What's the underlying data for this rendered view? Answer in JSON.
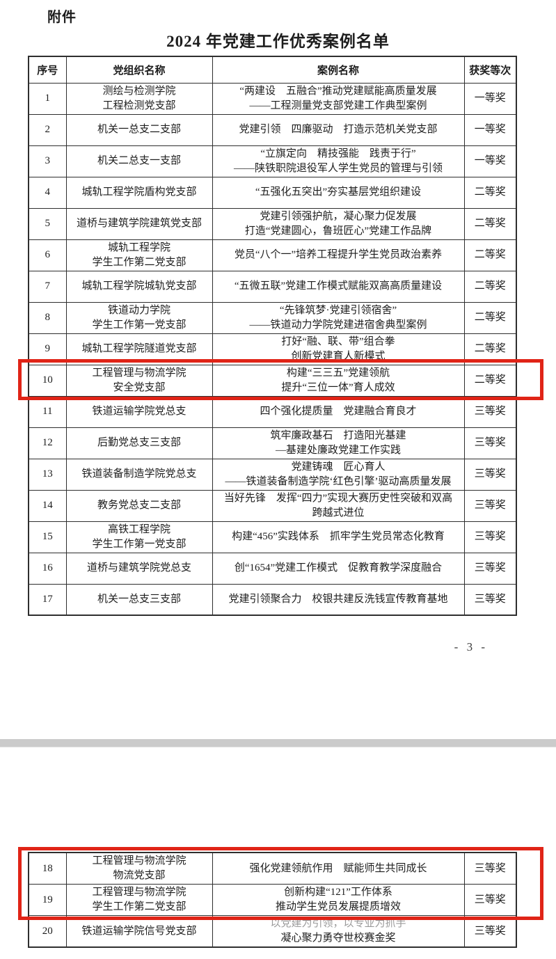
{
  "document": {
    "attachment_label": "附件",
    "title": "2024 年党建工作优秀案例名单",
    "page_number": "- 3 -",
    "highlight_color": "#e02417",
    "columns": [
      "序号",
      "党组织名称",
      "案例名称",
      "获奖等次"
    ],
    "rows": [
      {
        "no": "1",
        "page": 1,
        "org": [
          "测绘与检测学院",
          "工程检测党支部"
        ],
        "case": [
          "“两建设　五融合”推动党建赋能高质量发展",
          "——工程测量党支部党建工作典型案例"
        ],
        "award": "一等奖"
      },
      {
        "no": "2",
        "page": 1,
        "org": [
          "机关一总支二支部"
        ],
        "case": [
          "党建引领　四廉驱动　打造示范机关党支部"
        ],
        "award": "一等奖"
      },
      {
        "no": "3",
        "page": 1,
        "org": [
          "机关二总支一支部"
        ],
        "case": [
          "“立旗定向　精技强能　践责于行”",
          "——陕铁职院退役军人学生党员的管理与引领"
        ],
        "award": "一等奖"
      },
      {
        "no": "4",
        "page": 1,
        "org": [
          "城轨工程学院盾构党支部"
        ],
        "case": [
          "“五强化五突出”夯实基层党组织建设"
        ],
        "award": "二等奖"
      },
      {
        "no": "5",
        "page": 1,
        "org": [
          "道桥与建筑学院建筑党支部"
        ],
        "case": [
          "党建引领强护航，凝心聚力促发展",
          "打造“党建圆心，鲁班匠心”党建工作品牌"
        ],
        "award": "二等奖"
      },
      {
        "no": "6",
        "page": 1,
        "org": [
          "城轨工程学院",
          "学生工作第二党支部"
        ],
        "case": [
          "党员“八个一”培养工程提升学生党员政治素养"
        ],
        "award": "二等奖"
      },
      {
        "no": "7",
        "page": 1,
        "org": [
          "城轨工程学院城轨党支部"
        ],
        "case": [
          "“五微五联”党建工作模式赋能双高高质量建设"
        ],
        "award": "二等奖"
      },
      {
        "no": "8",
        "page": 1,
        "org": [
          "铁道动力学院",
          "学生工作第一党支部"
        ],
        "case": [
          "“先锋筑梦·党建引领宿舍”",
          "——铁道动力学院党建进宿舍典型案例"
        ],
        "award": "二等奖"
      },
      {
        "no": "9",
        "page": 1,
        "org": [
          "城轨工程学院隧道党支部"
        ],
        "case": [
          "打好“融、联、带”组合拳",
          "创新党建育人新模式"
        ],
        "award": "二等奖"
      },
      {
        "no": "10",
        "page": 1,
        "highlighted": true,
        "org": [
          "工程管理与物流学院",
          "安全党支部"
        ],
        "case": [
          "构建“三三五”党建领航",
          "提升“三位一体”育人成效"
        ],
        "award": "二等奖"
      },
      {
        "no": "11",
        "page": 1,
        "org": [
          "铁道运输学院党总支"
        ],
        "case": [
          "四个强化提质量　党建融合育良才"
        ],
        "award": "三等奖"
      },
      {
        "no": "12",
        "page": 1,
        "org": [
          "后勤党总支三支部"
        ],
        "case": [
          "筑牢廉政基石　打造阳光基建",
          "—基建处廉政党建工作实践"
        ],
        "award": "三等奖"
      },
      {
        "no": "13",
        "page": 1,
        "org": [
          "铁道装备制造学院党总支"
        ],
        "case": [
          "党建铸魂　匠心育人",
          "——铁道装备制造学院‘红色引擎’驱动高质量发展"
        ],
        "award": "三等奖"
      },
      {
        "no": "14",
        "page": 1,
        "org": [
          "教务党总支二支部"
        ],
        "case": [
          "当好先锋　发挥“四力”实现大赛历史性突破和双高",
          "跨越式进位"
        ],
        "award": "三等奖"
      },
      {
        "no": "15",
        "page": 1,
        "org": [
          "高铁工程学院",
          "学生工作第一党支部"
        ],
        "case": [
          "构建“456”实践体系　抓牢学生党员常态化教育"
        ],
        "award": "三等奖"
      },
      {
        "no": "16",
        "page": 1,
        "org": [
          "道桥与建筑学院党总支"
        ],
        "case": [
          "创“1654”党建工作模式　促教育教学深度融合"
        ],
        "award": "三等奖"
      },
      {
        "no": "17",
        "page": 1,
        "org": [
          "机关一总支三支部"
        ],
        "case": [
          "党建引领聚合力　校银共建反洗钱宣传教育基地"
        ],
        "award": "三等奖"
      },
      {
        "no": "18",
        "page": 2,
        "highlighted": true,
        "org": [
          "工程管理与物流学院",
          "物流党支部"
        ],
        "case": [
          "强化党建领航作用　赋能师生共同成长"
        ],
        "award": "三等奖"
      },
      {
        "no": "19",
        "page": 2,
        "highlighted": true,
        "org": [
          "工程管理与物流学院",
          "学生工作第二党支部"
        ],
        "case": [
          "创新构建“121”工作体系",
          "推动学生党员发展提质增效"
        ],
        "award": "三等奖"
      },
      {
        "no": "20",
        "page": 2,
        "faded_case_lines": [
          0
        ],
        "org": [
          "铁道运输学院信号党支部"
        ],
        "case": [
          "以党建为引领，以专业为抓手",
          "凝心聚力勇夺世校赛金奖"
        ],
        "award": "三等奖"
      }
    ]
  }
}
